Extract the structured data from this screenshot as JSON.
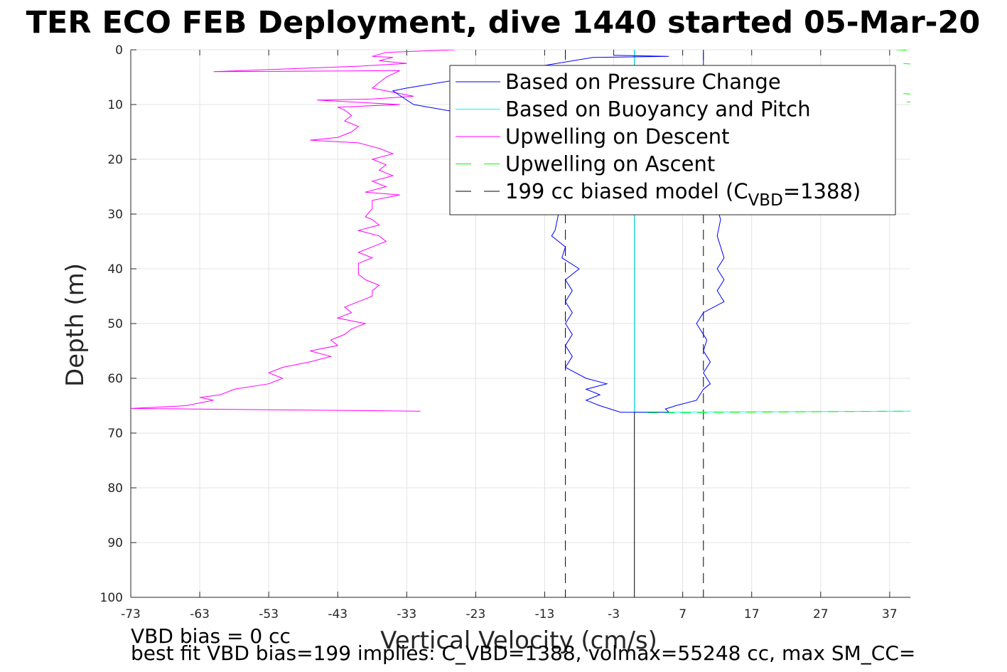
{
  "chart_data": {
    "type": "line",
    "title": "TER ECO FEB Deployment, dive 1440 started 05-Mar-20",
    "xlabel": "Vertical Velocity (cm/s)",
    "ylabel": "Depth (m)",
    "xlim": [
      -73,
      40
    ],
    "ylim": [
      0,
      100
    ],
    "y_reversed": true,
    "grid": true,
    "legend_position": "top-right",
    "x_ticks": [
      -73,
      -63,
      -53,
      -43,
      -33,
      -23,
      -13,
      -3,
      7,
      17,
      27,
      37
    ],
    "y_ticks": [
      0,
      10,
      20,
      30,
      40,
      50,
      60,
      70,
      80,
      90,
      100
    ],
    "legend": [
      {
        "label": "Based on Pressure Change",
        "color": "#0000ff",
        "dash": "solid"
      },
      {
        "label": "Based on Buoyancy and Pitch",
        "color": "#00ffff",
        "dash": "solid"
      },
      {
        "label": "Upwelling on Descent",
        "color": "#ff00ff",
        "dash": "solid"
      },
      {
        "label": "Upwelling on Ascent",
        "color": "#00ff00",
        "dash": "dashed"
      },
      {
        "label": "199 cc biased model (C",
        "sub": "VBD",
        "label_tail": "=1388)",
        "color": "#000000",
        "dash": "dashed"
      }
    ],
    "series": [
      {
        "name": "Based on Pressure Change",
        "color": "#0000ff",
        "points": [
          [
            -3,
            1.0
          ],
          [
            5,
            1.2
          ],
          [
            -6,
            1.4
          ],
          [
            -33,
            7.0
          ],
          [
            -35,
            7.5
          ],
          [
            -32,
            10.0
          ],
          [
            -23,
            12.0
          ],
          [
            -18,
            14
          ],
          [
            -16,
            18
          ],
          [
            -13,
            22
          ],
          [
            -12,
            26
          ],
          [
            -11,
            30
          ],
          [
            -11.5,
            33
          ],
          [
            -12,
            34
          ],
          [
            -10,
            36
          ],
          [
            -10.5,
            38
          ],
          [
            -8,
            40
          ],
          [
            -10,
            42
          ],
          [
            -9,
            44
          ],
          [
            -10,
            46
          ],
          [
            -9,
            48
          ],
          [
            -10,
            50
          ],
          [
            -9,
            52
          ],
          [
            -10,
            54
          ],
          [
            -9,
            56
          ],
          [
            -10,
            58
          ],
          [
            -7,
            60
          ],
          [
            -4,
            61
          ],
          [
            -7,
            62
          ],
          [
            -5,
            63
          ],
          [
            -7,
            64
          ],
          [
            -5,
            65
          ],
          [
            -2,
            66.2
          ],
          [
            5,
            66.2
          ],
          [
            4.5,
            65.6
          ],
          [
            6,
            65
          ],
          [
            9,
            64
          ],
          [
            10,
            62
          ],
          [
            11,
            61
          ],
          [
            10,
            59
          ],
          [
            11,
            57
          ],
          [
            10,
            55
          ],
          [
            10.5,
            53
          ],
          [
            9,
            50
          ],
          [
            10,
            48
          ],
          [
            13,
            46
          ],
          [
            12,
            44
          ],
          [
            13,
            42
          ],
          [
            12,
            40
          ],
          [
            13,
            38
          ],
          [
            12,
            34
          ],
          [
            12.5,
            31
          ],
          [
            12,
            29
          ],
          [
            11,
            26
          ],
          [
            10.5,
            23
          ],
          [
            11,
            20
          ],
          [
            10,
            17
          ],
          [
            10,
            10
          ],
          [
            10,
            4
          ],
          [
            10,
            0.5
          ]
        ]
      },
      {
        "name": "Based on Buoyancy and Pitch",
        "color": "#00ffff",
        "points": [
          [
            0,
            0.0
          ],
          [
            0,
            66.2
          ],
          [
            40,
            66.0
          ]
        ]
      },
      {
        "name": "Upwelling on Descent",
        "color": "#ff00ff",
        "points": [
          [
            -26,
            0
          ],
          [
            -36,
            0.5
          ],
          [
            -38,
            1.2
          ],
          [
            -35,
            1.4
          ],
          [
            -37,
            2.0
          ],
          [
            -33,
            2.5
          ],
          [
            -40,
            3.0
          ],
          [
            -61,
            4.0
          ],
          [
            -34,
            3.8
          ],
          [
            -36,
            5
          ],
          [
            -38,
            7
          ],
          [
            -36,
            7.5
          ],
          [
            -32,
            8.5
          ],
          [
            -38,
            9.0
          ],
          [
            -46,
            9.2
          ],
          [
            -34,
            10
          ],
          [
            -43,
            10.5
          ],
          [
            -42,
            11
          ],
          [
            -41,
            12
          ],
          [
            -42,
            13
          ],
          [
            -40,
            14
          ],
          [
            -41,
            15
          ],
          [
            -43,
            16
          ],
          [
            -47,
            16.5
          ],
          [
            -40,
            17
          ],
          [
            -37,
            18
          ],
          [
            -35,
            19
          ],
          [
            -38,
            20
          ],
          [
            -36,
            21
          ],
          [
            -37,
            22
          ],
          [
            -35,
            23
          ],
          [
            -38,
            24
          ],
          [
            -36,
            25
          ],
          [
            -39,
            26
          ],
          [
            -34,
            26.5
          ],
          [
            -38,
            27.5
          ],
          [
            -38,
            29
          ],
          [
            -39,
            30.5
          ],
          [
            -38,
            31
          ],
          [
            -37,
            32
          ],
          [
            -40,
            33
          ],
          [
            -37,
            34
          ],
          [
            -36,
            35
          ],
          [
            -38,
            36
          ],
          [
            -40,
            37
          ],
          [
            -38,
            38
          ],
          [
            -40,
            39
          ],
          [
            -40,
            40
          ],
          [
            -40,
            41
          ],
          [
            -39,
            42
          ],
          [
            -37,
            43
          ],
          [
            -38,
            44
          ],
          [
            -38,
            45
          ],
          [
            -40,
            46
          ],
          [
            -42,
            47
          ],
          [
            -41,
            48
          ],
          [
            -43,
            49
          ],
          [
            -39,
            50
          ],
          [
            -41,
            51
          ],
          [
            -42,
            52
          ],
          [
            -44,
            53
          ],
          [
            -43,
            54
          ],
          [
            -47,
            55
          ],
          [
            -44,
            56
          ],
          [
            -47,
            57
          ],
          [
            -51,
            58
          ],
          [
            -53,
            59
          ],
          [
            -51,
            60
          ],
          [
            -53,
            61
          ],
          [
            -58,
            62
          ],
          [
            -60,
            63
          ],
          [
            -63,
            63.5
          ],
          [
            -61,
            64
          ],
          [
            -65,
            65
          ],
          [
            -73,
            65.5
          ],
          [
            -31,
            66
          ]
        ]
      },
      {
        "name": "Upwelling on Ascent",
        "color": "#00ff00",
        "dashed": true,
        "points": [
          [
            2,
            66.3
          ],
          [
            40,
            66.0
          ],
          [
            null,
            null
          ],
          [
            38,
            0
          ],
          [
            40,
            0.1
          ],
          [
            null,
            null
          ],
          [
            39,
            2.5
          ],
          [
            40,
            2.6
          ],
          [
            null,
            null
          ],
          [
            39,
            8
          ],
          [
            40,
            8.1
          ],
          [
            null,
            null
          ],
          [
            39.5,
            9.5
          ],
          [
            40,
            9.5
          ]
        ]
      },
      {
        "name": "199 cc biased model",
        "color": "#000000",
        "dashed": true,
        "points": [
          [
            -10,
            0
          ],
          [
            -10,
            100
          ],
          [
            null,
            null
          ],
          [
            10,
            0
          ],
          [
            10,
            100
          ]
        ]
      },
      {
        "name": "zero line",
        "color": "#000000",
        "dashed": false,
        "points": [
          [
            0,
            0
          ],
          [
            0,
            100
          ]
        ]
      }
    ]
  },
  "notes": {
    "bias_line": "VBD bias = 0 cc",
    "fit_line": "best fit VBD bias=199 implies: C_VBD=1388, volmax=55248 cc, max SM_CC="
  }
}
